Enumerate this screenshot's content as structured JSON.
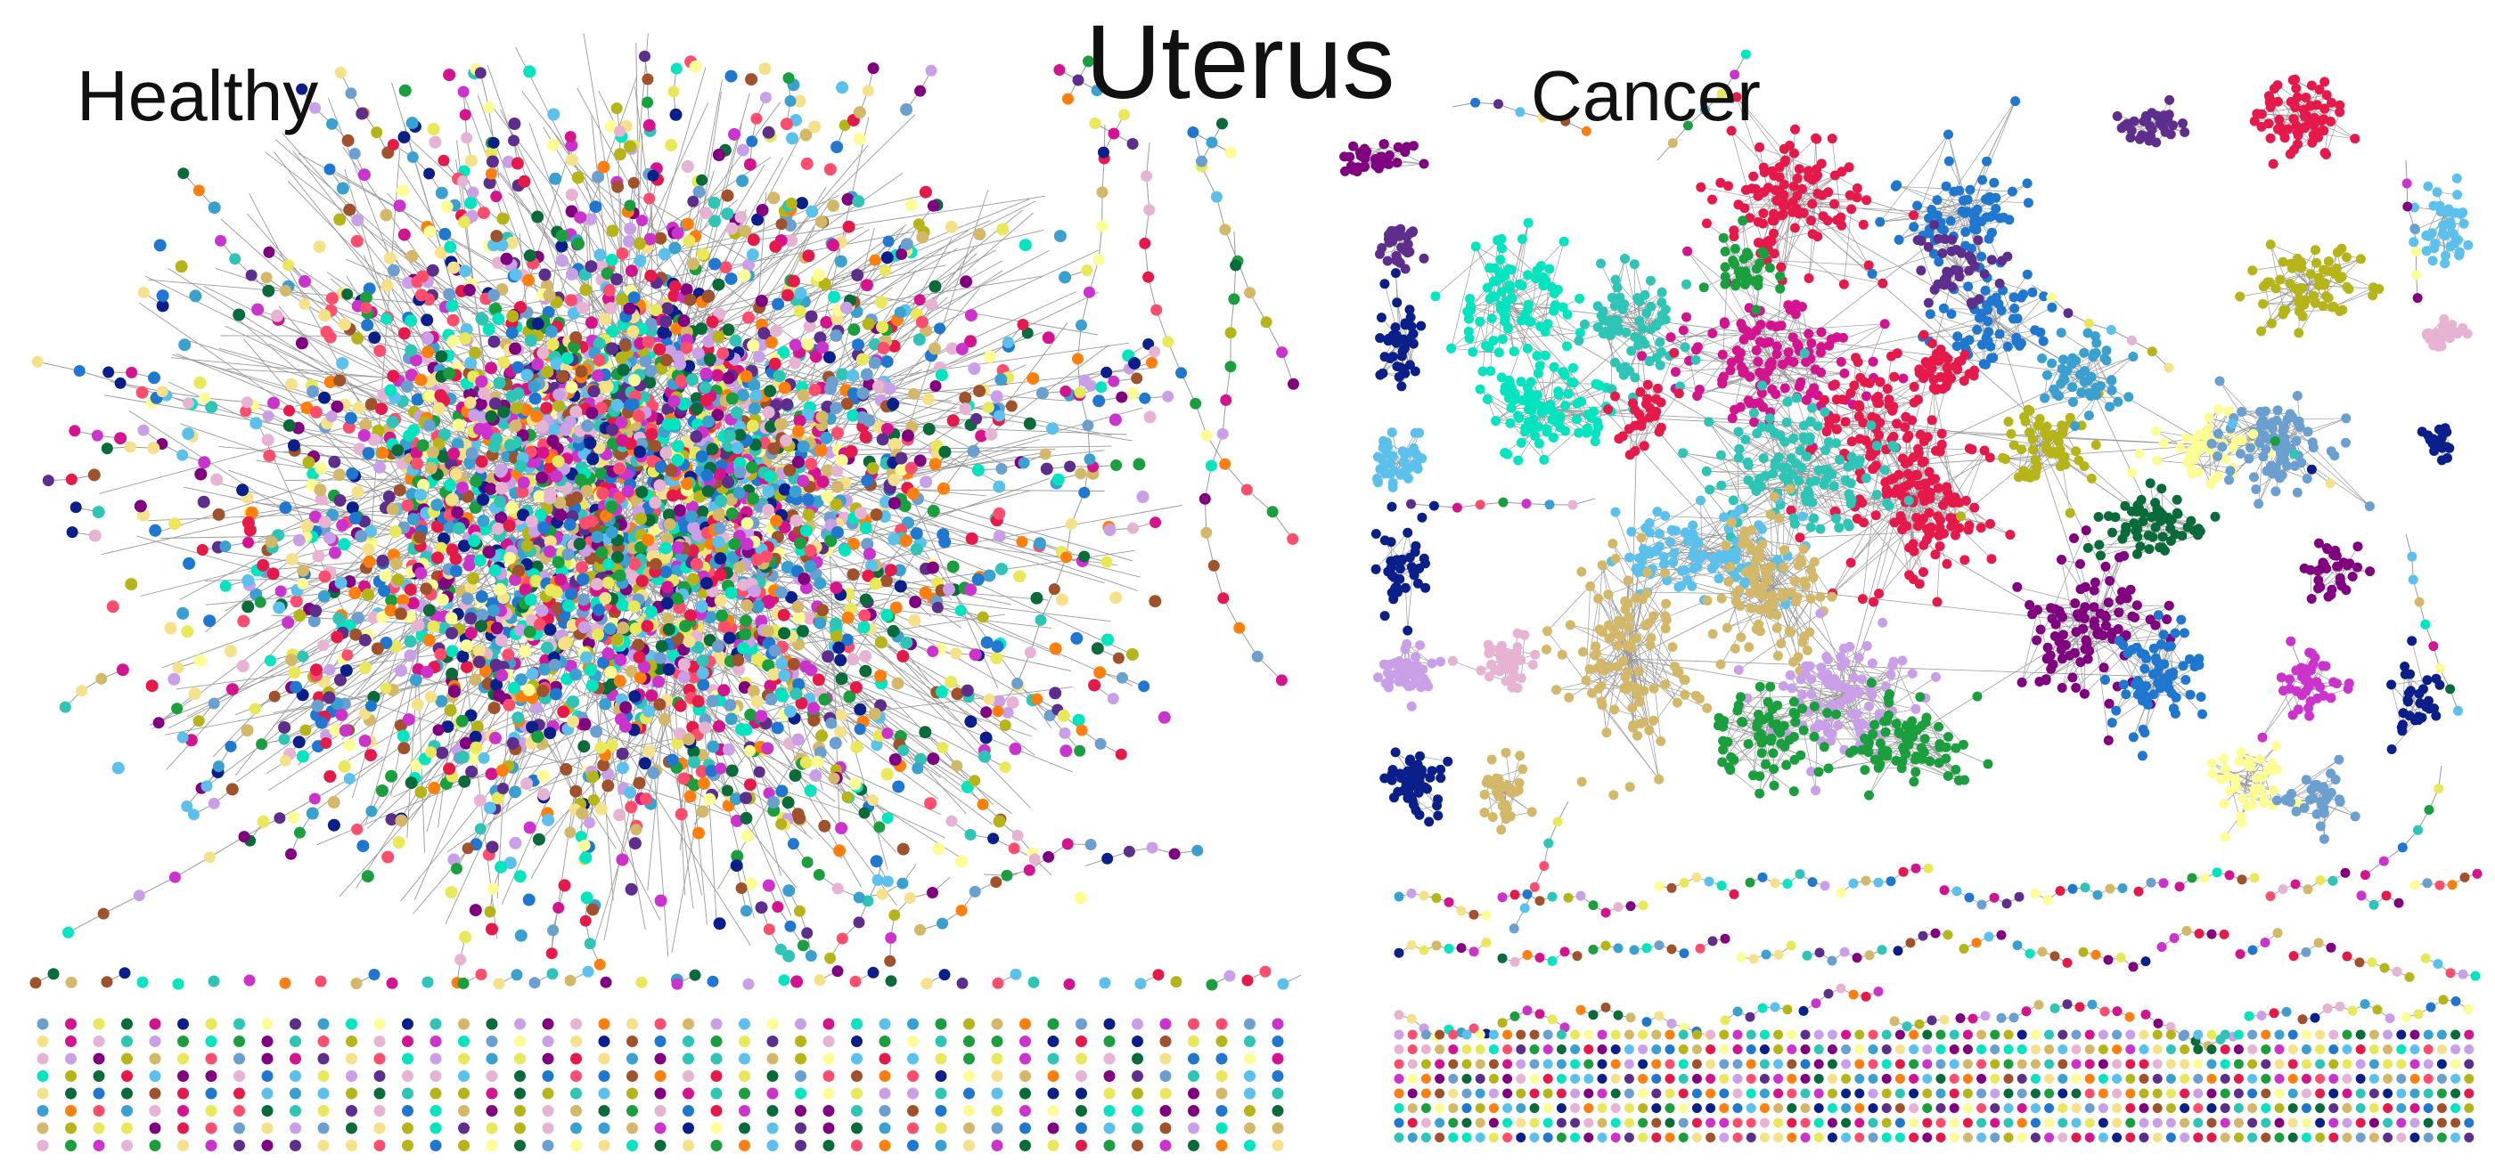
{
  "figure": {
    "title": "Uterus",
    "panels": [
      {
        "key": "healthy",
        "label": "Healthy"
      },
      {
        "key": "cancer",
        "label": "Cancer"
      }
    ]
  },
  "palette": [
    "#e6194b",
    "#1f77d0",
    "#2ec4b6",
    "#00e5c0",
    "#5bc0eb",
    "#0b1f8a",
    "#800080",
    "#d4148f",
    "#cc33cc",
    "#c9a0e8",
    "#e6b3d3",
    "#f4e18a",
    "#fdfd96",
    "#d4b86a",
    "#a0522d",
    "#b5b51a",
    "#1b9e3e",
    "#0a6b3a",
    "#3aa0d0",
    "#6a9fd0",
    "#5d2e8c",
    "#e8e85a",
    "#ff4d6d",
    "#ff7f0e"
  ],
  "edge_color": "#9a9a9a"
}
